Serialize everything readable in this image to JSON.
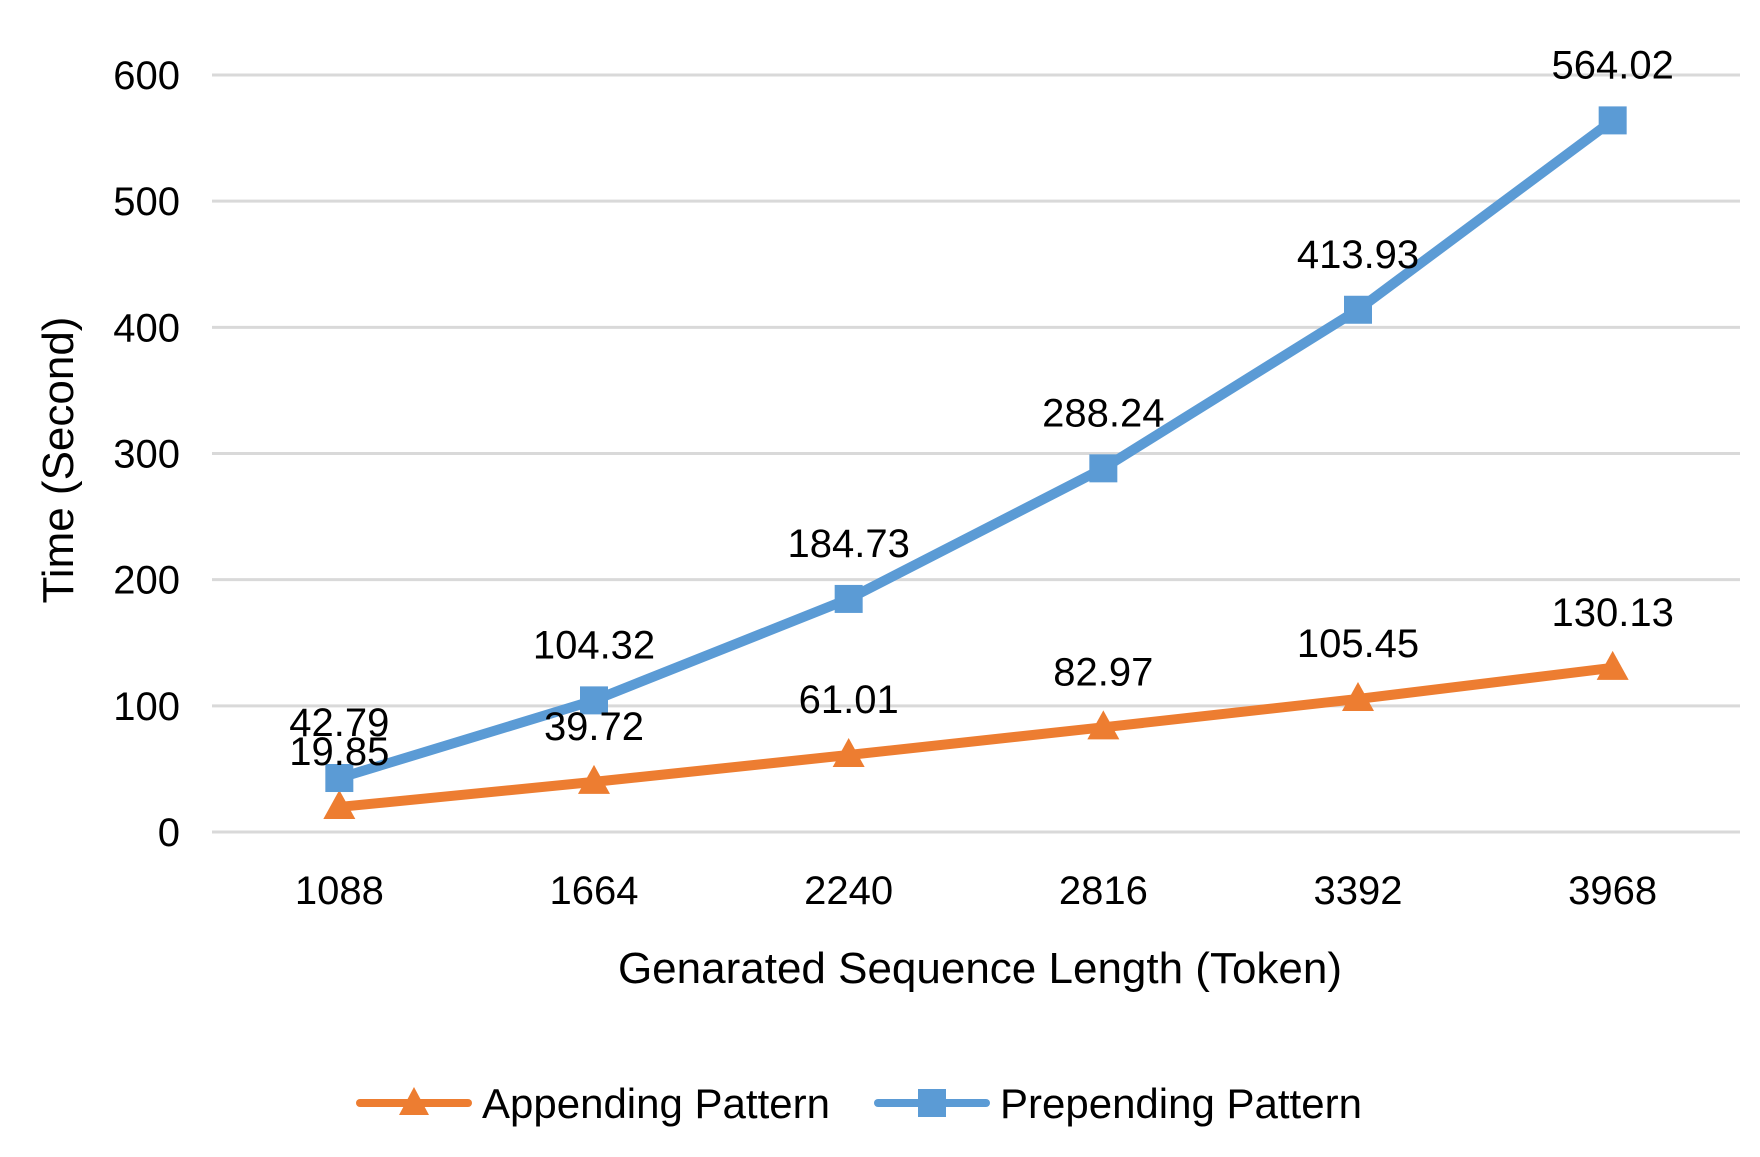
{
  "chart_data": {
    "type": "line",
    "title": "",
    "xlabel": "Genarated Sequence Length (Token)",
    "ylabel": "Time (Second)",
    "categories": [
      "1088",
      "1664",
      "2240",
      "2816",
      "3392",
      "3968"
    ],
    "ylim": [
      0,
      600
    ],
    "yticks": [
      0,
      100,
      200,
      300,
      400,
      500,
      600
    ],
    "grid": true,
    "legend_position": "bottom",
    "series": [
      {
        "name": "Appending Pattern",
        "color": "#ED7D31",
        "marker": "triangle",
        "values": [
          19.85,
          39.72,
          61.01,
          82.97,
          105.45,
          130.13
        ],
        "labels": [
          "19.85",
          "39.72",
          "61.01",
          "82.97",
          "105.45",
          "130.13"
        ]
      },
      {
        "name": "Prepending Pattern",
        "color": "#5B9BD5",
        "marker": "square",
        "values": [
          42.79,
          104.32,
          184.73,
          288.24,
          413.93,
          564.02
        ],
        "labels": [
          "42.79",
          "104.32",
          "184.73",
          "288.24",
          "413.93",
          "564.02"
        ]
      }
    ]
  }
}
